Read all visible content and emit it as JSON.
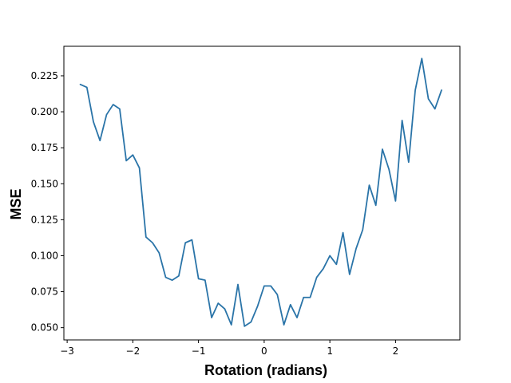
{
  "chart_data": {
    "type": "line",
    "xlabel": "Rotation (radians)",
    "ylabel": "MSE",
    "xlim": [
      -3.05,
      2.98
    ],
    "ylim": [
      0.0415,
      0.2455
    ],
    "xticks": [
      -3,
      -2,
      -1,
      0,
      1,
      2
    ],
    "xtick_labels": [
      "−3",
      "−2",
      "−1",
      "0",
      "1",
      "2"
    ],
    "yticks": [
      0.05,
      0.075,
      0.1,
      0.125,
      0.15,
      0.175,
      0.2,
      0.225
    ],
    "ytick_labels": [
      "0.050",
      "0.075",
      "0.100",
      "0.125",
      "0.150",
      "0.175",
      "0.200",
      "0.225"
    ],
    "grid": false,
    "line_color": "#2a74a8",
    "series": [
      {
        "x": [
          -2.8,
          -2.7,
          -2.6,
          -2.5,
          -2.4,
          -2.3,
          -2.2,
          -2.1,
          -2.0,
          -1.9,
          -1.8,
          -1.7,
          -1.6,
          -1.5,
          -1.4,
          -1.3,
          -1.2,
          -1.1,
          -1.0,
          -0.9,
          -0.8,
          -0.7,
          -0.6,
          -0.5,
          -0.4,
          -0.3,
          -0.2,
          -0.1,
          0.0,
          0.1,
          0.2,
          0.3,
          0.4,
          0.5,
          0.6,
          0.7,
          0.8,
          0.9,
          1.0,
          1.1,
          1.2,
          1.3,
          1.4,
          1.5,
          1.6,
          1.7,
          1.8,
          1.9,
          2.0,
          2.1,
          2.2,
          2.3,
          2.4,
          2.5,
          2.6,
          2.7
        ],
        "y": [
          0.219,
          0.217,
          0.193,
          0.18,
          0.198,
          0.205,
          0.202,
          0.166,
          0.17,
          0.161,
          0.113,
          0.109,
          0.102,
          0.085,
          0.083,
          0.086,
          0.109,
          0.111,
          0.084,
          0.083,
          0.057,
          0.067,
          0.063,
          0.052,
          0.08,
          0.051,
          0.054,
          0.065,
          0.079,
          0.079,
          0.073,
          0.052,
          0.066,
          0.057,
          0.071,
          0.071,
          0.085,
          0.091,
          0.1,
          0.094,
          0.116,
          0.087,
          0.105,
          0.118,
          0.149,
          0.135,
          0.174,
          0.16,
          0.138,
          0.194,
          0.165,
          0.215,
          0.237,
          0.209,
          0.202,
          0.215
        ]
      }
    ]
  }
}
